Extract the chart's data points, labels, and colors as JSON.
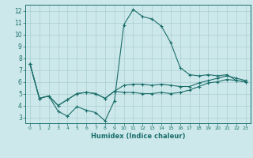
{
  "xlabel": "Humidex (Indice chaleur)",
  "background_color": "#cde8eb",
  "grid_color": "#aacdd2",
  "line_color": "#1a6e6a",
  "xlim": [
    -0.5,
    23.5
  ],
  "ylim": [
    2.5,
    12.5
  ],
  "yticks": [
    3,
    4,
    5,
    6,
    7,
    8,
    9,
    10,
    11,
    12
  ],
  "xticks": [
    0,
    1,
    2,
    3,
    4,
    5,
    6,
    7,
    8,
    9,
    10,
    11,
    12,
    13,
    14,
    15,
    16,
    17,
    18,
    19,
    20,
    21,
    22,
    23
  ],
  "x": [
    0,
    1,
    2,
    3,
    4,
    5,
    6,
    7,
    8,
    9,
    10,
    11,
    12,
    13,
    14,
    15,
    16,
    17,
    18,
    19,
    20,
    21,
    22,
    23
  ],
  "y_max": [
    7.5,
    4.6,
    4.8,
    3.5,
    3.1,
    3.9,
    3.6,
    3.4,
    2.7,
    4.4,
    10.8,
    12.1,
    11.5,
    11.3,
    10.7,
    9.3,
    7.2,
    6.6,
    6.5,
    6.6,
    6.5,
    6.6,
    6.1,
    6.0
  ],
  "y_mean": [
    7.5,
    4.6,
    4.8,
    4.0,
    4.5,
    5.0,
    5.1,
    5.0,
    4.6,
    5.2,
    5.7,
    5.8,
    5.8,
    5.7,
    5.8,
    5.7,
    5.6,
    5.6,
    5.9,
    6.1,
    6.3,
    6.5,
    6.3,
    6.1
  ],
  "y_min": [
    7.5,
    4.6,
    4.8,
    4.0,
    4.5,
    5.0,
    5.1,
    5.0,
    4.6,
    5.2,
    5.1,
    5.1,
    5.0,
    5.0,
    5.1,
    5.0,
    5.1,
    5.3,
    5.6,
    5.9,
    6.0,
    6.2,
    6.1,
    6.0
  ]
}
